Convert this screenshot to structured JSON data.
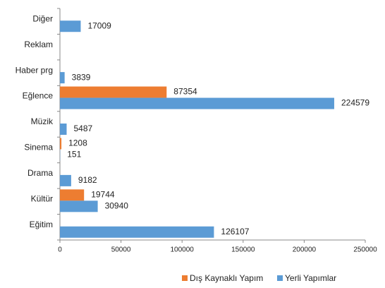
{
  "chart_data": {
    "type": "hbar",
    "categories": [
      "Diğer",
      "Reklam",
      "Haber prg",
      "Eğlence",
      "Müzik",
      "Sinema",
      "Drama",
      "Kültür",
      "Eğitim"
    ],
    "series": [
      {
        "name": "Dış Kaynaklı Yapım",
        "color": "#ed7d31",
        "values": [
          null,
          null,
          null,
          87354,
          null,
          1208,
          null,
          19744,
          null
        ]
      },
      {
        "name": "Yerli Yapımlar",
        "color": "#5b9bd5",
        "values": [
          17009,
          null,
          3839,
          224579,
          5487,
          151,
          9182,
          30940,
          126107
        ]
      }
    ],
    "xlim": [
      0,
      250000
    ],
    "xticks": [
      0,
      50000,
      100000,
      150000,
      200000,
      250000
    ],
    "legend": "bottom"
  }
}
